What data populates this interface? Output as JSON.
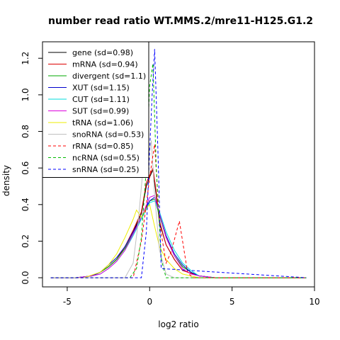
{
  "chart_data": {
    "type": "line",
    "title": "number read ratio WT.MMS.2/mre11-H125.G1.2",
    "xlabel": "log2 ratio",
    "ylabel": "density",
    "xlim": [
      -6.5,
      10
    ],
    "ylim": [
      -0.05,
      1.29
    ],
    "xticks": [
      -5,
      0,
      5,
      10
    ],
    "yticks": [
      0.0,
      0.2,
      0.4,
      0.6,
      0.8,
      1.0,
      1.2
    ],
    "xtick_labels": [
      "-5",
      "0",
      "5",
      "10"
    ],
    "ytick_labels": [
      "0.0",
      "0.2",
      "0.4",
      "0.6",
      "0.8",
      "1.0",
      "1.2"
    ],
    "grid": false,
    "legend_position": "top-left",
    "series": [
      {
        "name": "gene (sd=0.98)",
        "color": "#000000",
        "dashed": false,
        "x": [
          -6,
          -4.5,
          -3.5,
          -3,
          -2.5,
          -2,
          -1.5,
          -1,
          -0.5,
          -0.2,
          0,
          0.2,
          0.4,
          0.6,
          1,
          1.5,
          2,
          3,
          4,
          9.5
        ],
        "y": [
          0,
          0,
          0.01,
          0.03,
          0.06,
          0.1,
          0.17,
          0.25,
          0.35,
          0.5,
          0.55,
          0.59,
          0.45,
          0.3,
          0.18,
          0.1,
          0.04,
          0.01,
          0,
          0
        ]
      },
      {
        "name": "mRNA (sd=0.94)",
        "color": "#dd0000",
        "dashed": false,
        "x": [
          -6,
          -4.5,
          -3.5,
          -3,
          -2.5,
          -2,
          -1.5,
          -1,
          -0.5,
          -0.2,
          0,
          0.2,
          0.4,
          0.6,
          1,
          1.5,
          2,
          3,
          4,
          9.5
        ],
        "y": [
          0,
          0,
          0.01,
          0.03,
          0.06,
          0.1,
          0.17,
          0.26,
          0.36,
          0.52,
          0.56,
          0.6,
          0.47,
          0.31,
          0.18,
          0.1,
          0.04,
          0.01,
          0,
          0
        ]
      },
      {
        "name": "divergent (sd=1.1)",
        "color": "#00aa00",
        "dashed": false,
        "x": [
          -6,
          -4.5,
          -3.5,
          -3,
          -2.5,
          -2,
          -1.5,
          -1,
          -0.5,
          0,
          0.3,
          0.6,
          1,
          1.5,
          2,
          2.5,
          3,
          4,
          9.5
        ],
        "y": [
          0,
          0,
          0.01,
          0.03,
          0.06,
          0.1,
          0.16,
          0.24,
          0.33,
          0.42,
          0.43,
          0.34,
          0.22,
          0.12,
          0.06,
          0.03,
          0.01,
          0,
          0
        ]
      },
      {
        "name": "XUT (sd=1.15)",
        "color": "#0000cc",
        "dashed": false,
        "x": [
          -6,
          -4.5,
          -3.5,
          -3,
          -2.5,
          -2,
          -1.5,
          -1,
          -0.5,
          0,
          0.3,
          0.6,
          1,
          1.5,
          2,
          2.5,
          3,
          4,
          9.5
        ],
        "y": [
          0,
          0,
          0.01,
          0.03,
          0.07,
          0.11,
          0.17,
          0.25,
          0.33,
          0.42,
          0.44,
          0.35,
          0.23,
          0.13,
          0.07,
          0.03,
          0.01,
          0,
          0
        ]
      },
      {
        "name": "CUT (sd=1.11)",
        "color": "#00dddd",
        "dashed": false,
        "x": [
          -6,
          -4.5,
          -3.5,
          -3,
          -2.5,
          -2,
          -1.5,
          -1,
          -0.5,
          0,
          0.3,
          0.6,
          1,
          1.5,
          2,
          2.5,
          3,
          4,
          9.5
        ],
        "y": [
          0,
          0,
          0.01,
          0.02,
          0.05,
          0.09,
          0.15,
          0.23,
          0.32,
          0.41,
          0.42,
          0.36,
          0.25,
          0.15,
          0.08,
          0.04,
          0.01,
          0,
          0
        ]
      },
      {
        "name": "SUT (sd=0.99)",
        "color": "#dd00dd",
        "dashed": false,
        "x": [
          -6,
          -4.5,
          -3.5,
          -3,
          -2.5,
          -2,
          -1.5,
          -1,
          -0.5,
          0,
          0.3,
          0.6,
          1,
          1.5,
          2,
          2.5,
          3,
          4,
          9.5
        ],
        "y": [
          0,
          0,
          0.01,
          0.02,
          0.05,
          0.09,
          0.15,
          0.24,
          0.33,
          0.44,
          0.45,
          0.35,
          0.22,
          0.12,
          0.05,
          0.02,
          0.01,
          0,
          0
        ]
      },
      {
        "name": "tRNA (sd=1.06)",
        "color": "#eeee00",
        "dashed": false,
        "x": [
          -6,
          -4,
          -3,
          -2.5,
          -2,
          -1.5,
          -1,
          -0.8,
          -0.5,
          -0.2,
          0,
          0.3,
          0.6,
          1,
          1.5,
          2,
          3,
          9.5
        ],
        "y": [
          0,
          0,
          0.03,
          0.07,
          0.13,
          0.22,
          0.32,
          0.37,
          0.33,
          0.38,
          0.4,
          0.28,
          0.17,
          0.1,
          0.05,
          0.02,
          0,
          0
        ]
      },
      {
        "name": "snoRNA (sd=0.53)",
        "color": "#c0c0c0",
        "dashed": false,
        "x": [
          -6,
          -1.5,
          -1,
          -0.7,
          -0.4,
          -0.3,
          -0.1,
          0.1,
          0.3,
          0.6,
          1,
          1.5,
          9.5
        ],
        "y": [
          0,
          0,
          0.08,
          0.3,
          0.6,
          0.72,
          0.65,
          0.75,
          0.45,
          0.15,
          0.02,
          0,
          0
        ]
      },
      {
        "name": "rRNA (sd=0.85)",
        "color": "#ff0000",
        "dashed": true,
        "x": [
          -6,
          -1,
          -0.5,
          -0.2,
          0,
          0.3,
          0.6,
          1,
          1.3,
          1.8,
          2.3,
          2.6,
          9.5
        ],
        "y": [
          0,
          0,
          0.2,
          0.4,
          0.55,
          0.73,
          0.3,
          0.08,
          0.14,
          0.31,
          0.03,
          0,
          0
        ]
      },
      {
        "name": "ncRNA (sd=0.55)",
        "color": "#00bb00",
        "dashed": true,
        "x": [
          -6,
          -1.5,
          -1.2,
          -0.8,
          -0.5,
          -0.2,
          0,
          0.2,
          0.4,
          0.7,
          1,
          9.5
        ],
        "y": [
          0,
          0,
          0,
          0.05,
          0.22,
          0.6,
          1.05,
          1.17,
          0.6,
          0.1,
          0,
          0
        ]
      },
      {
        "name": "snRNA (sd=0.25)",
        "color": "#0000ff",
        "dashed": true,
        "x": [
          -6,
          -1,
          -0.5,
          -0.2,
          0,
          0.15,
          0.3,
          0.5,
          0.7,
          9.5
        ],
        "y": [
          0,
          0,
          0,
          0.25,
          0.7,
          1.0,
          1.25,
          0.7,
          0.05,
          0
        ]
      }
    ]
  }
}
